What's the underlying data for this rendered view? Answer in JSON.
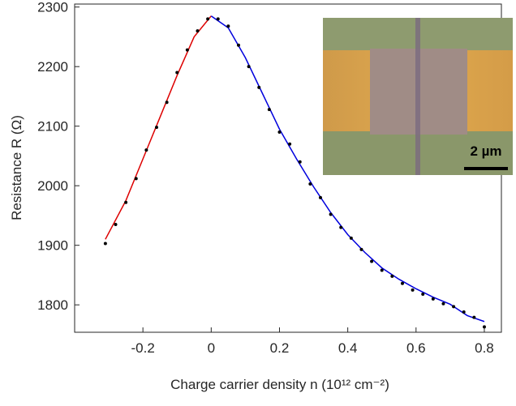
{
  "chart_data": {
    "type": "scatter",
    "x_label": "Charge carrier density n (10¹² cm⁻²)",
    "y_label": "Resistance R (Ω)",
    "xlim": [
      -0.4,
      0.85
    ],
    "ylim": [
      1754,
      2305
    ],
    "xticks": [
      -0.2,
      0,
      0.2,
      0.4,
      0.6,
      0.8
    ],
    "yticks": [
      1800,
      1900,
      2000,
      2100,
      2200,
      2300
    ],
    "inset_scale_label": "2 µm",
    "series": [
      {
        "style": "points",
        "color": "#000000",
        "x": [
          -0.31,
          -0.28,
          -0.25,
          -0.22,
          -0.19,
          -0.16,
          -0.13,
          -0.1,
          -0.07,
          -0.04,
          -0.01,
          0.02,
          0.05,
          0.08,
          0.11,
          0.14,
          0.17,
          0.2,
          0.23,
          0.26,
          0.29,
          0.32,
          0.35,
          0.38,
          0.41,
          0.44,
          0.47,
          0.5,
          0.53,
          0.56,
          0.59,
          0.62,
          0.65,
          0.68,
          0.71,
          0.74,
          0.77,
          0.8
        ],
        "values": [
          1903,
          1935,
          1972,
          2012,
          2060,
          2098,
          2140,
          2190,
          2228,
          2260,
          2280,
          2280,
          2268,
          2236,
          2200,
          2165,
          2128,
          2090,
          2070,
          2040,
          2003,
          1980,
          1952,
          1930,
          1912,
          1893,
          1873,
          1858,
          1848,
          1836,
          1825,
          1818,
          1810,
          1802,
          1797,
          1788,
          1779,
          1763
        ]
      },
      {
        "style": "line",
        "color": "#dd0000",
        "x": [
          -0.31,
          -0.25,
          -0.2,
          -0.15,
          -0.1,
          -0.05,
          0
        ],
        "values": [
          1910,
          1975,
          2045,
          2115,
          2185,
          2250,
          2285
        ]
      },
      {
        "style": "line",
        "color": "#0000dd",
        "x": [
          0,
          0.05,
          0.1,
          0.15,
          0.2,
          0.25,
          0.3,
          0.35,
          0.4,
          0.45,
          0.5,
          0.55,
          0.6,
          0.65,
          0.7,
          0.75,
          0.8
        ],
        "values": [
          2285,
          2265,
          2215,
          2155,
          2095,
          2045,
          1998,
          1955,
          1918,
          1888,
          1862,
          1843,
          1827,
          1813,
          1801,
          1782,
          1772
        ]
      }
    ]
  }
}
